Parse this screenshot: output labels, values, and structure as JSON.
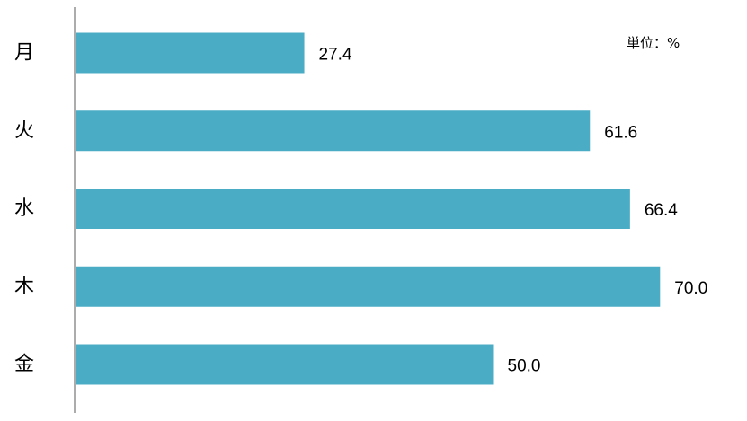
{
  "chart_data": {
    "type": "bar",
    "orientation": "horizontal",
    "categories": [
      "月",
      "火",
      "水",
      "木",
      "金"
    ],
    "values": [
      27.4,
      61.6,
      66.4,
      70.0,
      50.0
    ],
    "value_labels": [
      "27.4",
      "61.6",
      "66.4",
      "70.0",
      "50.0"
    ],
    "unit_note": "単位：%",
    "xlim": [
      0,
      100
    ],
    "grid": false,
    "bar_color": "#4BACC6"
  }
}
